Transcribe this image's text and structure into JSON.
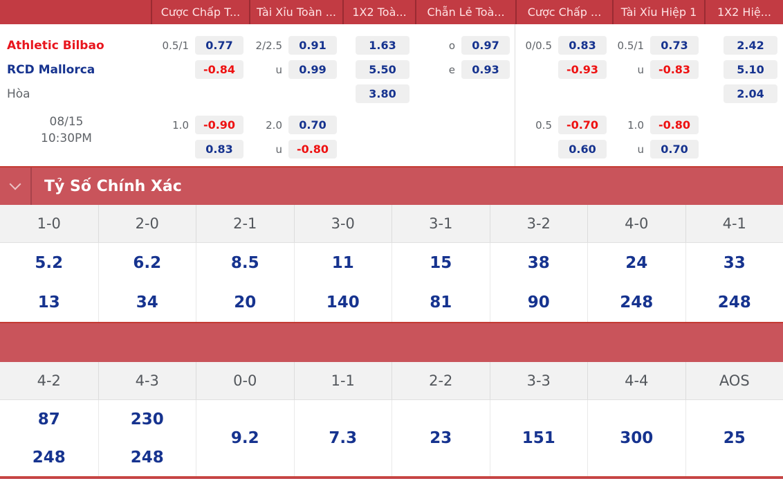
{
  "colors": {
    "header-red": "#c23b43",
    "section-red": "#c9545b",
    "section-red-border": "#c43a33",
    "divider-dark-red": "#9a2b32",
    "odds-blue": "#16338f",
    "odds-neg": "#ee1111",
    "home-red": "#e8151d",
    "muted": "#5f6368",
    "chip-bg": "#efefef",
    "score-head-bg": "#f2f2f2"
  },
  "markets": [
    "Cược Chấp T...",
    "Tài Xỉu Toàn ...",
    "1X2 Toà...",
    "Chẵn Lẻ Toà...",
    "Cược Chấp ...",
    "Tài Xỉu Hiệp 1",
    "1X2 Hiệ..."
  ],
  "match": {
    "home_team": "Athletic Bilbao",
    "away_team": "RCD Mallorca",
    "draw_label": "Hòa",
    "date": "08/15",
    "time": "10:30PM"
  },
  "odds": {
    "full_handicap": {
      "row1_line": "0.5/1",
      "row1_odds": "0.77",
      "row2_odds": "-0.84",
      "row4_line": "1.0",
      "row4_odds": "-0.90",
      "row5_odds": "0.83"
    },
    "full_over_under": {
      "row1_line": "2/2.5",
      "row1_odds": "0.91",
      "row2_line": "u",
      "row2_odds": "0.99",
      "row4_line": "2.0",
      "row4_odds": "0.70",
      "row5_line": "u",
      "row5_odds": "-0.80"
    },
    "full_1x2": {
      "home": "1.63",
      "away": "5.50",
      "draw": "3.80"
    },
    "full_odd_even": {
      "row1_line": "o",
      "row1_odds": "0.97",
      "row2_line": "e",
      "row2_odds": "0.93"
    },
    "half_handicap": {
      "row1_line": "0/0.5",
      "row1_odds": "0.83",
      "row2_odds": "-0.93",
      "row4_line": "0.5",
      "row4_odds": "-0.70",
      "row5_odds": "0.60"
    },
    "half_over_under": {
      "row1_line": "0.5/1",
      "row1_odds": "0.73",
      "row2_line": "u",
      "row2_odds": "-0.83",
      "row4_line": "1.0",
      "row4_odds": "-0.80",
      "row5_line": "u",
      "row5_odds": "0.70"
    },
    "half_1x2": {
      "home": "2.42",
      "away": "5.10",
      "draw": "2.04"
    }
  },
  "correct_score": {
    "title": "Tỷ Số Chính Xác",
    "grid1": {
      "scores": [
        "1-0",
        "2-0",
        "2-1",
        "3-0",
        "3-1",
        "3-2",
        "4-0",
        "4-1"
      ],
      "odds_top": [
        "5.2",
        "6.2",
        "8.5",
        "11",
        "15",
        "38",
        "24",
        "33"
      ],
      "odds_bottom": [
        "13",
        "34",
        "20",
        "140",
        "81",
        "90",
        "248",
        "248"
      ]
    },
    "grid2": {
      "scores": [
        "4-2",
        "4-3",
        "0-0",
        "1-1",
        "2-2",
        "3-3",
        "4-4",
        "AOS"
      ],
      "odds_top": [
        "87",
        "230",
        "9.2",
        "7.3",
        "23",
        "151",
        "300",
        "25"
      ],
      "odds_bottom": [
        "248",
        "248",
        "",
        "",
        "",
        "",
        "",
        ""
      ]
    }
  }
}
